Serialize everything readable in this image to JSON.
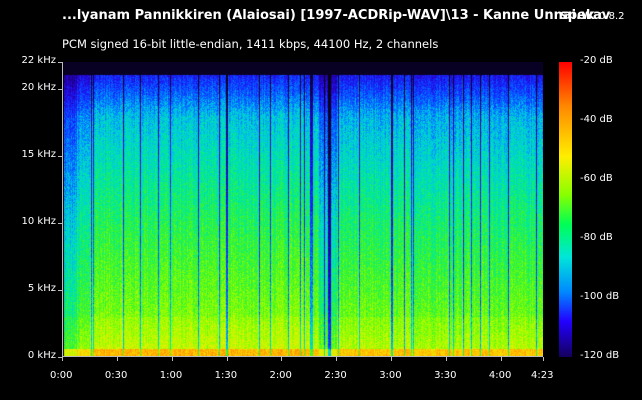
{
  "header": {
    "file_title": "...lyanam Pannikkiren (Alaiosai) [1997-ACDRip-WAV]\\13 - Kanne Unnai.wav",
    "app_name": "spek",
    "app_version": "0.8.2",
    "audio_info": "PCM signed 16-bit little-endian, 1411 kbps, 44100 Hz, 2 channels"
  },
  "frequency_axis": {
    "labels": [
      "22 kHz",
      "20 kHz",
      "15 kHz",
      "10 kHz",
      "5 kHz",
      "0 kHz"
    ],
    "values": [
      22,
      20,
      15,
      10,
      5,
      0
    ],
    "range": [
      0,
      22
    ]
  },
  "time_axis": {
    "labels": [
      "0:00",
      "0:30",
      "1:00",
      "1:30",
      "2:00",
      "2:30",
      "3:00",
      "3:30",
      "4:00",
      "4:23"
    ],
    "values": [
      0,
      30,
      60,
      90,
      120,
      150,
      180,
      210,
      240,
      263
    ],
    "range": [
      0,
      263
    ]
  },
  "colorbar": {
    "labels": [
      "-20 dB",
      "-40 dB",
      "-60 dB",
      "-80 dB",
      "-100 dB",
      "-120 dB"
    ],
    "values": [
      -20,
      -40,
      -60,
      -80,
      -100,
      -120
    ],
    "range": [
      -120,
      -20
    ]
  },
  "chart_data": {
    "type": "heatmap",
    "xlabel": "",
    "ylabel": "",
    "xlim": [
      0,
      263
    ],
    "ylim": [
      0,
      22
    ],
    "zlim": [
      -120,
      -20
    ]
  }
}
